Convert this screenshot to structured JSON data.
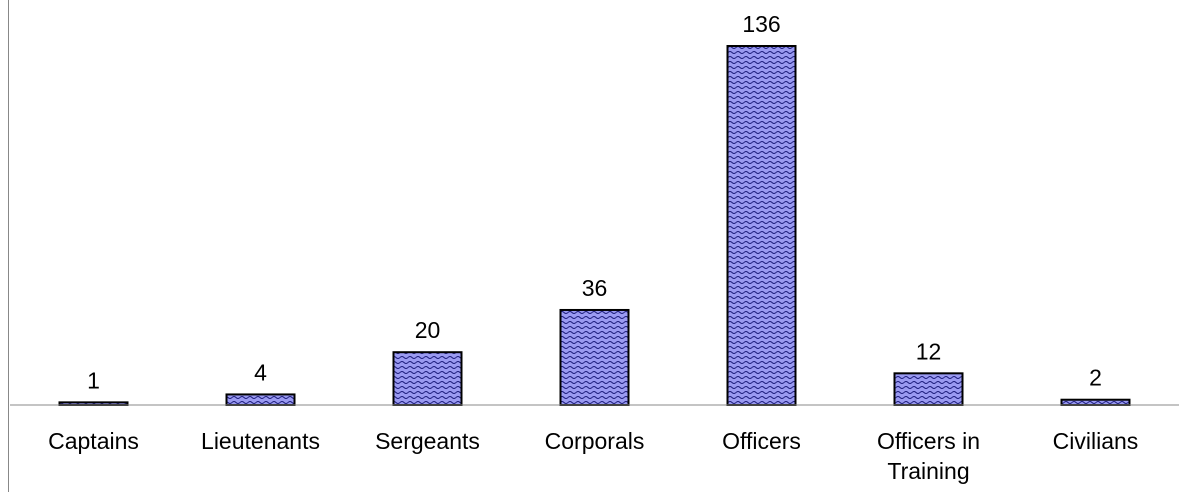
{
  "chart_data": {
    "type": "bar",
    "categories": [
      "Captains",
      "Lieutenants",
      "Sergeants",
      "Corporals",
      "Officers",
      "Officers in Training",
      "Civilians"
    ],
    "values": [
      1,
      4,
      20,
      36,
      136,
      12,
      2
    ],
    "color": "#9a9af2"
  }
}
